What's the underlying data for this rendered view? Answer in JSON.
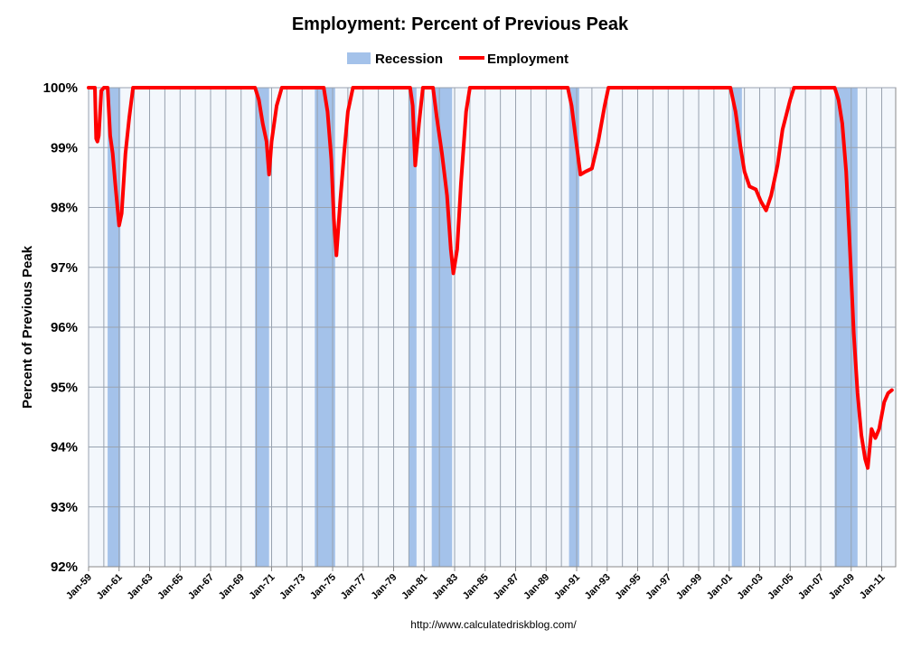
{
  "chart_data": {
    "type": "line",
    "title": "Employment: Percent of Previous Peak",
    "xlabel": "",
    "ylabel": "Percent of Previous Peak",
    "source": "http://www.calculatedriskblog.com/",
    "ylim": [
      92,
      100
    ],
    "xlim": [
      "1959-01",
      "2011-12"
    ],
    "y_ticks": [
      "92%",
      "93%",
      "94%",
      "95%",
      "96%",
      "97%",
      "98%",
      "99%",
      "100%"
    ],
    "x_ticks": [
      "Jan-59",
      "Jan-61",
      "Jan-63",
      "Jan-65",
      "Jan-67",
      "Jan-69",
      "Jan-71",
      "Jan-73",
      "Jan-75",
      "Jan-77",
      "Jan-79",
      "Jan-81",
      "Jan-83",
      "Jan-85",
      "Jan-87",
      "Jan-89",
      "Jan-91",
      "Jan-93",
      "Jan-95",
      "Jan-97",
      "Jan-99",
      "Jan-01",
      "Jan-03",
      "Jan-05",
      "Jan-07",
      "Jan-09",
      "Jan-11"
    ],
    "grid": "vertical gridlines yearly, horizontal gridlines every 1%",
    "legend_position": "top-center",
    "colors": {
      "recession": "#a4c2ea",
      "employment": "#ff0000",
      "plot_background": "#f3f7fc",
      "grid": "#98a2af"
    },
    "series": [
      {
        "name": "Employment",
        "type": "line",
        "points": [
          [
            "1959-01",
            100
          ],
          [
            "1959-06",
            100
          ],
          [
            "1959-07",
            99.15
          ],
          [
            "1959-08",
            99.1
          ],
          [
            "1959-09",
            99.2
          ],
          [
            "1959-11",
            99.95
          ],
          [
            "1960-01",
            100
          ],
          [
            "1960-04",
            100
          ],
          [
            "1960-06",
            99.2
          ],
          [
            "1960-08",
            98.9
          ],
          [
            "1960-10",
            98.4
          ],
          [
            "1961-01",
            97.7
          ],
          [
            "1961-03",
            97.9
          ],
          [
            "1961-06",
            98.9
          ],
          [
            "1961-09",
            99.5
          ],
          [
            "1961-12",
            100
          ],
          [
            "1966-01",
            100
          ],
          [
            "1969-12",
            100
          ],
          [
            "1970-03",
            99.8
          ],
          [
            "1970-06",
            99.4
          ],
          [
            "1970-09",
            99.1
          ],
          [
            "1970-11",
            98.55
          ],
          [
            "1971-01",
            99.1
          ],
          [
            "1971-05",
            99.7
          ],
          [
            "1971-09",
            100
          ],
          [
            "1974-06",
            100
          ],
          [
            "1974-09",
            99.6
          ],
          [
            "1974-12",
            98.8
          ],
          [
            "1975-02",
            97.8
          ],
          [
            "1975-04",
            97.2
          ],
          [
            "1975-07",
            98.1
          ],
          [
            "1975-10",
            98.9
          ],
          [
            "1976-01",
            99.6
          ],
          [
            "1976-05",
            100
          ],
          [
            "1980-02",
            100
          ],
          [
            "1980-04",
            99.7
          ],
          [
            "1980-06",
            98.7
          ],
          [
            "1980-09",
            99.4
          ],
          [
            "1980-12",
            100
          ],
          [
            "1981-08",
            100
          ],
          [
            "1981-11",
            99.5
          ],
          [
            "1982-03",
            98.9
          ],
          [
            "1982-07",
            98.2
          ],
          [
            "1982-10",
            97.3
          ],
          [
            "1982-12",
            96.9
          ],
          [
            "1983-03",
            97.3
          ],
          [
            "1983-06",
            98.4
          ],
          [
            "1983-10",
            99.6
          ],
          [
            "1984-01",
            100
          ],
          [
            "1990-06",
            100
          ],
          [
            "1990-09",
            99.7
          ],
          [
            "1990-12",
            99.2
          ],
          [
            "1991-04",
            98.55
          ],
          [
            "1991-08",
            98.6
          ],
          [
            "1992-01",
            98.65
          ],
          [
            "1992-06",
            99.1
          ],
          [
            "1992-11",
            99.7
          ],
          [
            "1993-02",
            100
          ],
          [
            "2001-02",
            100
          ],
          [
            "2001-06",
            99.6
          ],
          [
            "2001-10",
            99.0
          ],
          [
            "2002-01",
            98.6
          ],
          [
            "2002-05",
            98.35
          ],
          [
            "2002-10",
            98.3
          ],
          [
            "2003-02",
            98.1
          ],
          [
            "2003-06",
            97.95
          ],
          [
            "2003-10",
            98.2
          ],
          [
            "2004-03",
            98.7
          ],
          [
            "2004-07",
            99.3
          ],
          [
            "2005-01",
            99.8
          ],
          [
            "2005-04",
            100
          ],
          [
            "2007-12",
            100
          ],
          [
            "2008-03",
            99.8
          ],
          [
            "2008-06",
            99.4
          ],
          [
            "2008-09",
            98.6
          ],
          [
            "2008-12",
            97.3
          ],
          [
            "2009-03",
            95.9
          ],
          [
            "2009-06",
            94.9
          ],
          [
            "2009-09",
            94.2
          ],
          [
            "2009-12",
            93.8
          ],
          [
            "2010-02",
            93.65
          ],
          [
            "2010-05",
            94.3
          ],
          [
            "2010-08",
            94.15
          ],
          [
            "2010-11",
            94.3
          ],
          [
            "2011-03",
            94.75
          ],
          [
            "2011-06",
            94.9
          ],
          [
            "2011-09",
            94.95
          ]
        ]
      },
      {
        "name": "Recession",
        "type": "bands",
        "periods": [
          [
            "1960-04",
            "1961-02"
          ],
          [
            "1969-12",
            "1970-11"
          ],
          [
            "1973-11",
            "1975-03"
          ],
          [
            "1980-01",
            "1980-07"
          ],
          [
            "1981-07",
            "1982-11"
          ],
          [
            "1990-07",
            "1991-03"
          ],
          [
            "2001-03",
            "2001-11"
          ],
          [
            "2007-12",
            "2009-06"
          ]
        ]
      }
    ]
  }
}
